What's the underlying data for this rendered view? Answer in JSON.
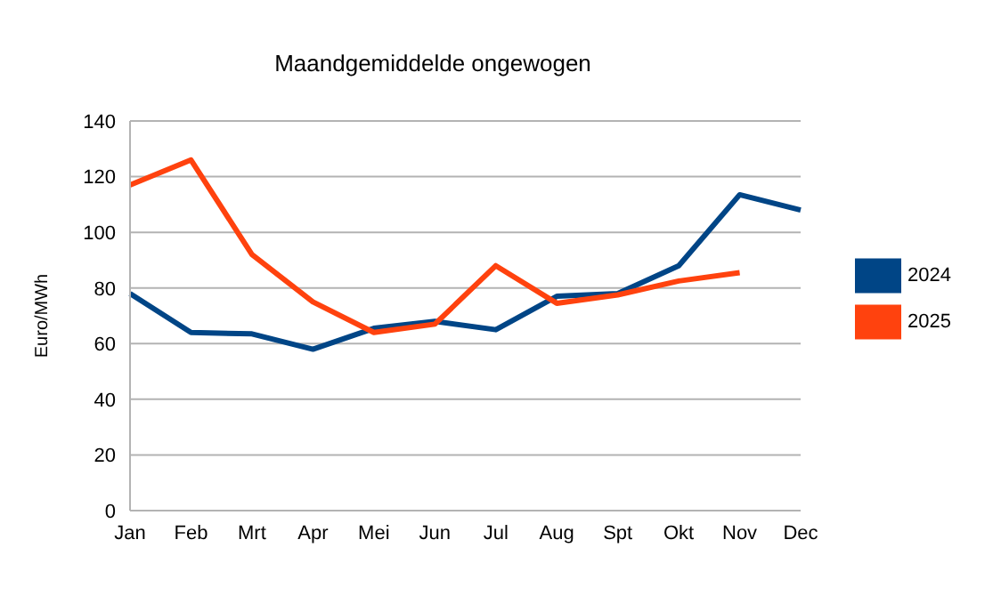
{
  "chart_data": {
    "type": "line",
    "title": "Maandgemiddelde ongewogen",
    "ylabel": "Euro/MWh",
    "categories": [
      "Jan",
      "Feb",
      "Mrt",
      "Apr",
      "Mei",
      "Jun",
      "Jul",
      "Aug",
      "Spt",
      "Okt",
      "Nov",
      "Dec"
    ],
    "series": [
      {
        "name": "2024",
        "color": "#004586",
        "values": [
          78,
          64,
          63.5,
          58,
          65.5,
          68,
          65,
          77,
          78,
          88,
          113.5,
          108
        ]
      },
      {
        "name": "2025",
        "color": "#ff420e",
        "values": [
          117,
          126,
          92,
          75,
          64,
          67,
          88,
          74.5,
          77.5,
          82.5,
          85.5,
          null
        ]
      }
    ],
    "ylim": [
      0,
      140
    ],
    "yticks": [
      0,
      20,
      40,
      60,
      80,
      100,
      120,
      140
    ],
    "grid": "y",
    "legend": "right",
    "marker": "none",
    "line_style": "solid"
  }
}
